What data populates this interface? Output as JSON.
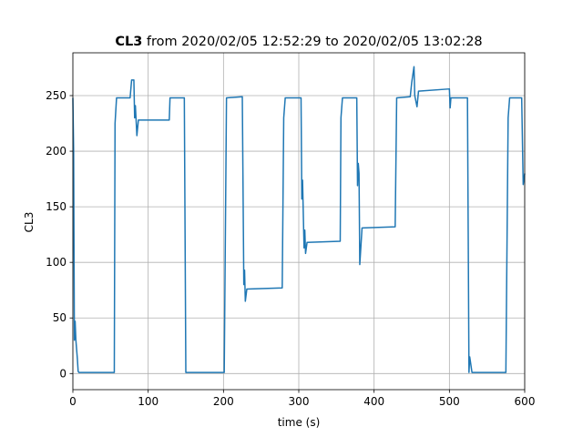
{
  "chart_data": {
    "type": "line",
    "title": {
      "bold": "CL3",
      "text": "from 2020/02/05 12:52:29 to 2020/02/05 13:02:28"
    },
    "x_label": "time (s)",
    "y_label": "CL3",
    "xlim": [
      0,
      600
    ],
    "ylim": [
      -14.5,
      288.5
    ],
    "xticks": [
      0,
      100,
      200,
      300,
      400,
      500,
      600
    ],
    "yticks": [
      0,
      50,
      100,
      150,
      200,
      250
    ],
    "grid": true,
    "x": [
      0,
      1,
      2,
      3,
      4,
      6,
      7,
      8,
      55,
      56,
      58,
      76,
      78,
      81,
      82,
      83,
      85,
      87,
      128,
      129,
      148,
      150,
      201,
      204,
      225,
      227,
      228,
      229,
      231,
      278,
      280,
      282,
      303,
      304,
      305,
      307,
      308,
      309,
      311,
      355,
      356,
      358,
      377,
      378,
      379,
      380,
      381,
      384,
      428,
      430,
      448,
      450,
      453,
      454,
      457,
      459,
      500,
      501,
      502,
      524,
      526,
      527,
      530,
      575,
      578,
      580,
      596,
      598,
      600
    ],
    "series": [
      {
        "name": "CL3",
        "color": "#1f77b4",
        "values": [
          248,
          200,
          30,
          47,
          30,
          13,
          2,
          1,
          1,
          225,
          248,
          248,
          264,
          264,
          230,
          241,
          214,
          228,
          228,
          248,
          248,
          1,
          1,
          248,
          249,
          80,
          93,
          65,
          76,
          77,
          230,
          248,
          248,
          157,
          174,
          113,
          129,
          108,
          118,
          119,
          230,
          248,
          248,
          169,
          189,
          180,
          98,
          131,
          132,
          248,
          249,
          262,
          276,
          250,
          240,
          254,
          256,
          239,
          248,
          248,
          1,
          15,
          1,
          1,
          230,
          248,
          248,
          170,
          180
        ]
      }
    ]
  }
}
